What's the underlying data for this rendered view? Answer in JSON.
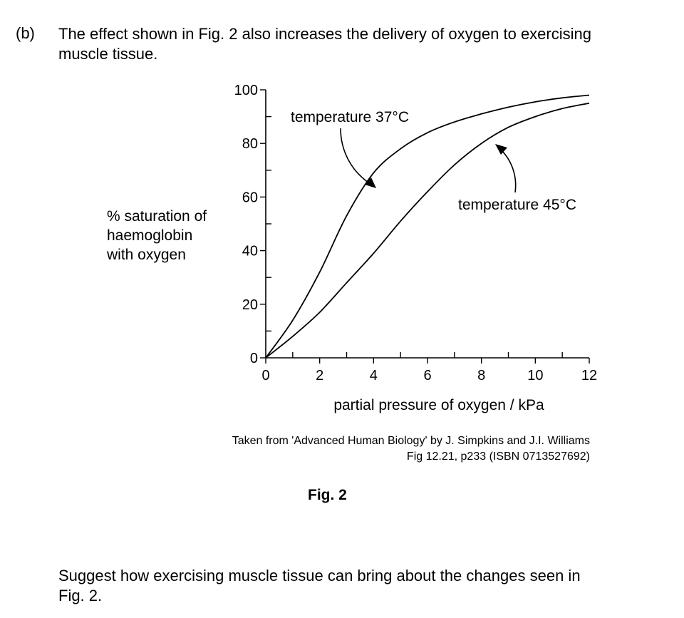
{
  "question": {
    "label": "(b)",
    "text_line1": "The effect shown in Fig. 2 also increases the delivery of oxygen to exercising",
    "text_line2": "muscle tissue."
  },
  "chart_data": {
    "type": "line",
    "xlabel": "partial pressure of oxygen / kPa",
    "ylabel_lines": [
      "% saturation of",
      "haemoglobin",
      "with oxygen"
    ],
    "xlim": [
      0,
      12
    ],
    "ylim": [
      0,
      100
    ],
    "x_ticks": [
      0,
      2,
      4,
      6,
      8,
      10,
      12
    ],
    "y_ticks": [
      0,
      20,
      40,
      60,
      80,
      100
    ],
    "grid": false,
    "series": [
      {
        "name": "temperature 37°C",
        "x": [
          0,
          1,
          2,
          3,
          4,
          5,
          6,
          7,
          8,
          9,
          10,
          11,
          12
        ],
        "y": [
          0,
          14,
          32,
          53,
          69,
          78,
          84,
          88,
          91,
          93.5,
          95.5,
          97,
          98
        ]
      },
      {
        "name": "temperature 45°C",
        "x": [
          0,
          1,
          2,
          3,
          4,
          5,
          6,
          7,
          8,
          9,
          10,
          11,
          12
        ],
        "y": [
          0,
          8,
          17,
          28,
          39,
          51,
          62,
          72,
          80,
          86,
          90,
          93,
          95
        ]
      }
    ]
  },
  "source": {
    "line1": "Taken from 'Advanced Human Biology' by J. Simpkins and J.I. Williams",
    "line2": "Fig 12.21, p233 (ISBN 0713527692)"
  },
  "figure_label": "Fig. 2",
  "prompt": {
    "line1": "Suggest how exercising muscle tissue can bring about the changes seen in",
    "line2": "Fig. 2."
  }
}
